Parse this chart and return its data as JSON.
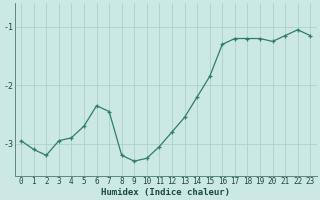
{
  "x": [
    0,
    1,
    2,
    3,
    4,
    5,
    6,
    7,
    8,
    9,
    10,
    11,
    12,
    13,
    14,
    15,
    16,
    17,
    18,
    19,
    20,
    21,
    22,
    23
  ],
  "y": [
    -2.95,
    -3.1,
    -3.2,
    -2.95,
    -2.9,
    -2.7,
    -2.35,
    -2.45,
    -3.2,
    -3.3,
    -3.25,
    -3.05,
    -2.8,
    -2.55,
    -2.2,
    -1.85,
    -1.3,
    -1.2,
    -1.2,
    -1.2,
    -1.25,
    -1.15,
    -1.05,
    -1.15
  ],
  "xlabel": "Humidex (Indice chaleur)",
  "line_color": "#2e7d6e",
  "marker": "+",
  "bg_color": "#cce8e4",
  "grid_color": "#aed0cc",
  "tick_label_color": "#1a4a44",
  "axis_color": "#5a8a84",
  "ylim": [
    -3.55,
    -0.6
  ],
  "yticks": [
    -3,
    -2,
    -1
  ],
  "xlim": [
    -0.5,
    23.5
  ],
  "xlabel_fontsize": 6.5,
  "tick_fontsize": 5.5
}
